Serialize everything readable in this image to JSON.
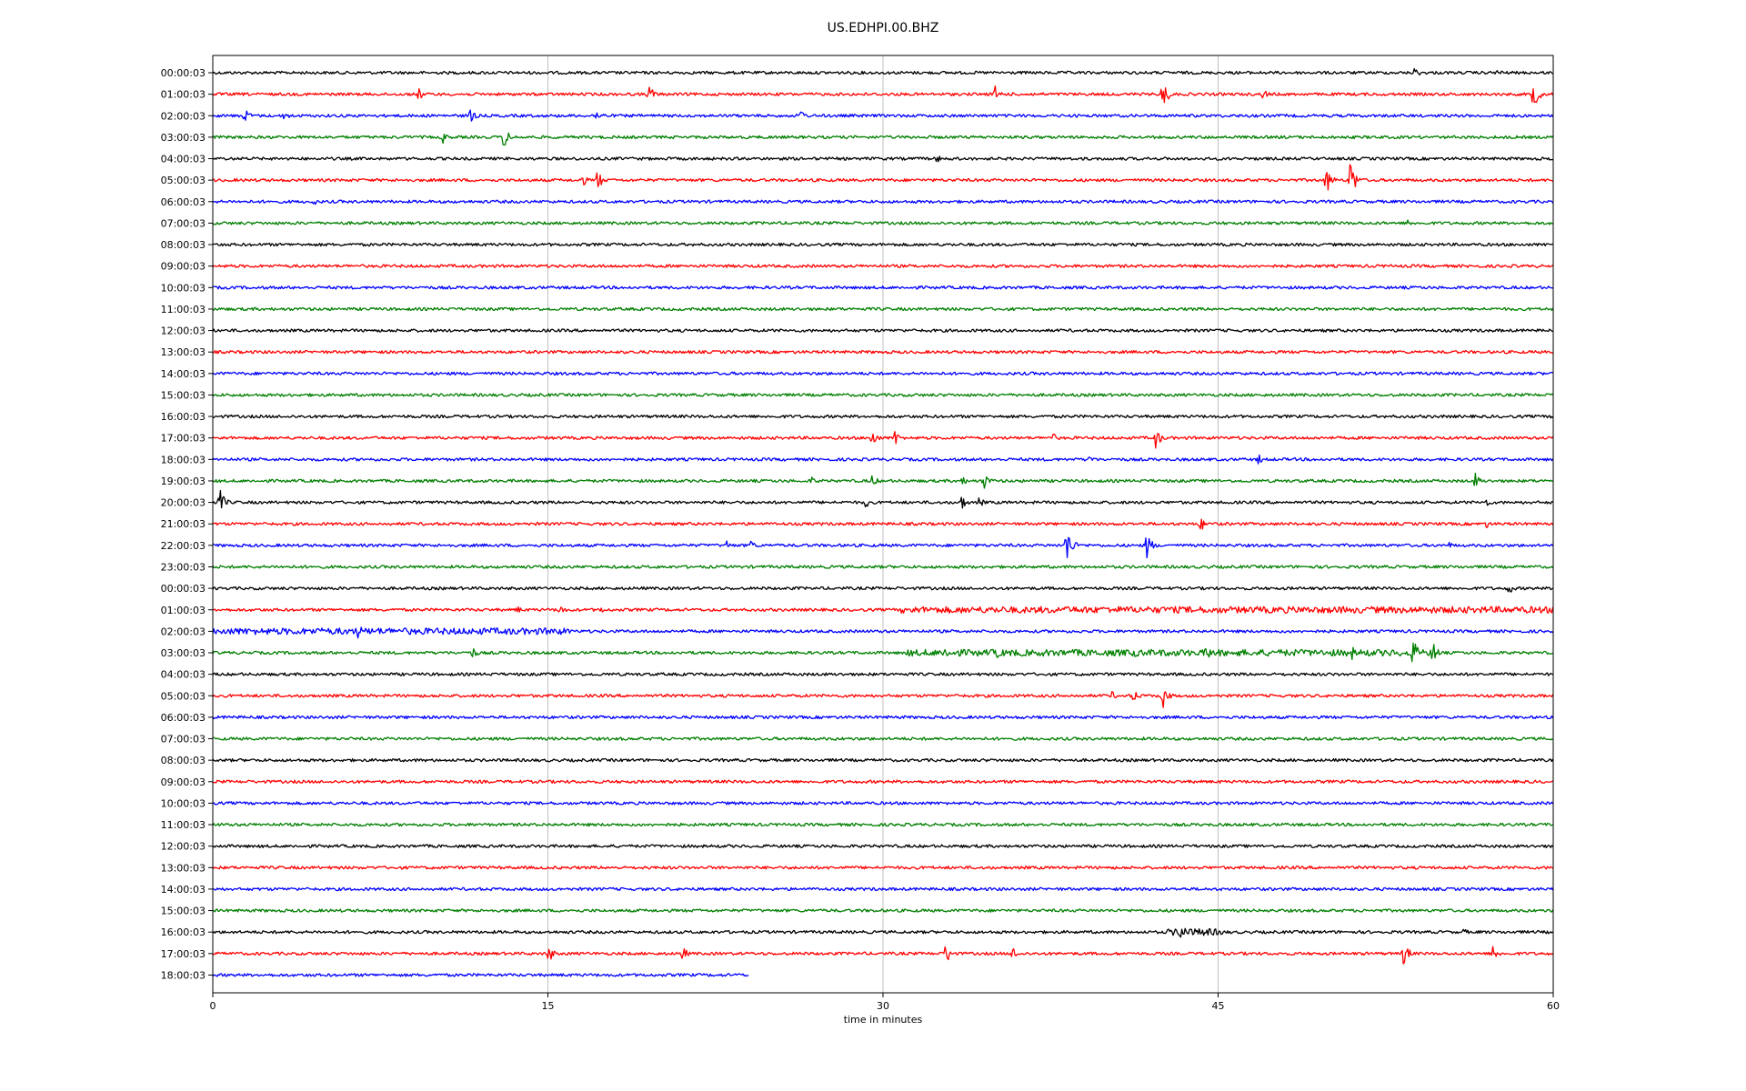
{
  "chart_data": {
    "type": "line",
    "title": "US.EDHPI.00.BHZ",
    "xlabel": "time in minutes",
    "ylabel": "",
    "xlim": [
      0,
      60
    ],
    "xticks": [
      "0",
      "15",
      "30",
      "45",
      "60"
    ],
    "xtick_values": [
      0,
      15,
      30,
      45,
      60
    ],
    "grid": "vertical gridlines at x ticks",
    "color_cycle": [
      "#000000",
      "#ff0000",
      "#0000ff",
      "#007f00"
    ],
    "trace_labels": [
      "00:00:03",
      "01:00:03",
      "02:00:03",
      "03:00:03",
      "04:00:03",
      "05:00:03",
      "06:00:03",
      "07:00:03",
      "08:00:03",
      "09:00:03",
      "10:00:03",
      "11:00:03",
      "12:00:03",
      "13:00:03",
      "14:00:03",
      "15:00:03",
      "16:00:03",
      "17:00:03",
      "18:00:03",
      "19:00:03",
      "20:00:03",
      "21:00:03",
      "22:00:03",
      "23:00:03",
      "00:00:03",
      "01:00:03",
      "02:00:03",
      "03:00:03",
      "04:00:03",
      "05:00:03",
      "06:00:03",
      "07:00:03",
      "08:00:03",
      "09:00:03",
      "10:00:03",
      "11:00:03",
      "12:00:03",
      "13:00:03",
      "14:00:03",
      "15:00:03",
      "16:00:03",
      "17:00:03",
      "18:00:03"
    ],
    "trace_end_minutes": [
      60,
      60,
      60,
      60,
      60,
      60,
      60,
      60,
      60,
      60,
      60,
      60,
      60,
      60,
      60,
      60,
      60,
      60,
      60,
      60,
      60,
      60,
      60,
      60,
      60,
      60,
      60,
      60,
      60,
      60,
      60,
      60,
      60,
      60,
      60,
      60,
      60,
      60,
      60,
      60,
      60,
      60,
      24
    ],
    "events": [
      {
        "trace": 0,
        "minute": 53.8,
        "amp": 0.4
      },
      {
        "trace": 0,
        "minute": 57.5,
        "amp": 0.3
      },
      {
        "trace": 1,
        "minute": 9.2,
        "amp": 0.45
      },
      {
        "trace": 1,
        "minute": 19.5,
        "amp": 0.7
      },
      {
        "trace": 1,
        "minute": 35.0,
        "amp": 0.6
      },
      {
        "trace": 1,
        "minute": 42.5,
        "amp": 1.1
      },
      {
        "trace": 1,
        "minute": 47.0,
        "amp": 0.4
      },
      {
        "trace": 1,
        "minute": 59.1,
        "amp": 1.1
      },
      {
        "trace": 2,
        "minute": 1.4,
        "amp": 0.55
      },
      {
        "trace": 2,
        "minute": 3.2,
        "amp": 0.45
      },
      {
        "trace": 2,
        "minute": 11.5,
        "amp": 0.55
      },
      {
        "trace": 2,
        "minute": 17.2,
        "amp": 0.6
      },
      {
        "trace": 2,
        "minute": 26.3,
        "amp": 0.45
      },
      {
        "trace": 3,
        "minute": 10.3,
        "amp": 0.4
      },
      {
        "trace": 3,
        "minute": 13.0,
        "amp": 0.8
      },
      {
        "trace": 4,
        "minute": 32.4,
        "amp": 0.3
      },
      {
        "trace": 5,
        "minute": 16.5,
        "amp": 0.5
      },
      {
        "trace": 5,
        "minute": 17.2,
        "amp": 0.7
      },
      {
        "trace": 5,
        "minute": 49.8,
        "amp": 1.1
      },
      {
        "trace": 5,
        "minute": 50.9,
        "amp": 1.5
      },
      {
        "trace": 6,
        "minute": 4.5,
        "amp": 0.25
      },
      {
        "trace": 7,
        "minute": 53.5,
        "amp": 0.3
      },
      {
        "trace": 17,
        "minute": 29.5,
        "amp": 0.65
      },
      {
        "trace": 17,
        "minute": 30.5,
        "amp": 0.6
      },
      {
        "trace": 17,
        "minute": 37.5,
        "amp": 0.5
      },
      {
        "trace": 17,
        "minute": 42.2,
        "amp": 0.7
      },
      {
        "trace": 18,
        "minute": 39.2,
        "amp": 0.35
      },
      {
        "trace": 18,
        "minute": 46.8,
        "amp": 0.35
      },
      {
        "trace": 19,
        "minute": 26.8,
        "amp": 0.3
      },
      {
        "trace": 19,
        "minute": 29.5,
        "amp": 0.45
      },
      {
        "trace": 19,
        "minute": 33.5,
        "amp": 0.4
      },
      {
        "trace": 19,
        "minute": 34.5,
        "amp": 0.65
      },
      {
        "trace": 19,
        "minute": 56.5,
        "amp": 0.55
      },
      {
        "trace": 20,
        "minute": 0.3,
        "amp": 0.9
      },
      {
        "trace": 20,
        "minute": 29.2,
        "amp": 0.4
      },
      {
        "trace": 20,
        "minute": 33.5,
        "amp": 0.55
      },
      {
        "trace": 20,
        "minute": 34.3,
        "amp": 0.35
      },
      {
        "trace": 20,
        "minute": 57.0,
        "amp": 0.3
      },
      {
        "trace": 21,
        "minute": 44.2,
        "amp": 0.55
      },
      {
        "trace": 21,
        "minute": 57.0,
        "amp": 0.3
      },
      {
        "trace": 22,
        "minute": 23.0,
        "amp": 0.35
      },
      {
        "trace": 22,
        "minute": 24.1,
        "amp": 0.4
      },
      {
        "trace": 22,
        "minute": 38.2,
        "amp": 1.4
      },
      {
        "trace": 22,
        "minute": 41.8,
        "amp": 0.9
      },
      {
        "trace": 22,
        "minute": 55.3,
        "amp": 0.25
      },
      {
        "trace": 24,
        "minute": 58.0,
        "amp": 0.45
      },
      {
        "trace": 25,
        "minute": 13.6,
        "amp": 0.3
      },
      {
        "trace": 25,
        "minute": 15.5,
        "amp": 0.45
      },
      {
        "trace": 25,
        "minute": 17.3,
        "amp": 0.3
      },
      {
        "trace": 26,
        "minute": 6.5,
        "amp": 0.5
      },
      {
        "trace": 27,
        "minute": 11.6,
        "amp": 0.45
      },
      {
        "trace": 27,
        "minute": 32.8,
        "amp": 0.55
      },
      {
        "trace": 27,
        "minute": 35.1,
        "amp": 0.45
      },
      {
        "trace": 27,
        "minute": 41.2,
        "amp": 0.4
      },
      {
        "trace": 27,
        "minute": 44.5,
        "amp": 0.7
      },
      {
        "trace": 27,
        "minute": 51.0,
        "amp": 0.45
      },
      {
        "trace": 27,
        "minute": 53.7,
        "amp": 1.0
      },
      {
        "trace": 27,
        "minute": 54.6,
        "amp": 0.8
      },
      {
        "trace": 29,
        "minute": 40.2,
        "amp": 0.35
      },
      {
        "trace": 29,
        "minute": 41.2,
        "amp": 0.5
      },
      {
        "trace": 29,
        "minute": 42.5,
        "amp": 0.9
      },
      {
        "trace": 40,
        "minute": 43.3,
        "amp": 0.85
      },
      {
        "trace": 40,
        "minute": 44.3,
        "amp": 0.55
      },
      {
        "trace": 40,
        "minute": 56.0,
        "amp": 0.25
      },
      {
        "trace": 41,
        "minute": 15.0,
        "amp": 0.65
      },
      {
        "trace": 41,
        "minute": 21.0,
        "amp": 0.5
      },
      {
        "trace": 41,
        "minute": 32.8,
        "amp": 0.8
      },
      {
        "trace": 41,
        "minute": 35.8,
        "amp": 0.5
      },
      {
        "trace": 41,
        "minute": 53.3,
        "amp": 0.85
      },
      {
        "trace": 41,
        "minute": 57.3,
        "amp": 0.6
      }
    ],
    "noisy_segments": [
      {
        "trace": 25,
        "from": 30.8,
        "to": 60
      },
      {
        "trace": 26,
        "from": 0,
        "to": 16
      },
      {
        "trace": 27,
        "from": 31,
        "to": 55
      },
      {
        "trace": 40,
        "from": 42.7,
        "to": 45.2
      }
    ]
  }
}
